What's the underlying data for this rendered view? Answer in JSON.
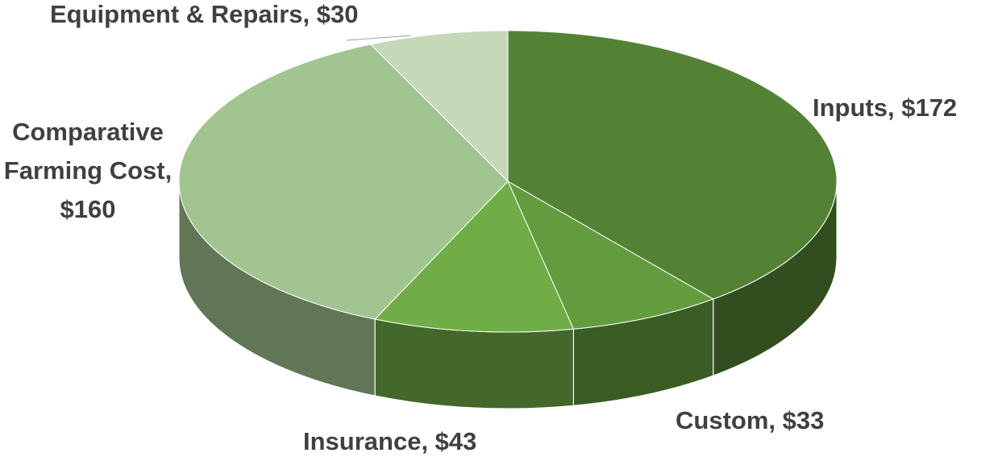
{
  "chart_data": {
    "type": "pie",
    "three_d": true,
    "values": [
      172,
      33,
      43,
      160,
      30
    ],
    "value_labels": [
      "Inputs, $172",
      "Custom, $33",
      "Insurance, $43",
      "Comparative Farming Cost, $160",
      "Equipment & Repairs, $30"
    ],
    "colors": [
      "#548235",
      "#629c3f",
      "#70ad47",
      "#a2c491",
      "#c5d9b9"
    ]
  }
}
